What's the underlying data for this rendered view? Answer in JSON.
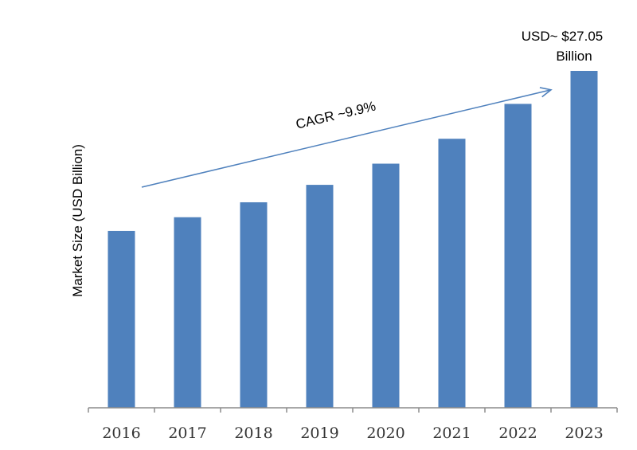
{
  "chart_data": {
    "type": "bar",
    "title": "",
    "xlabel": "",
    "ylabel": "Market Size (USD Billion)",
    "categories": [
      "2016",
      "2017",
      "2018",
      "2019",
      "2020",
      "2021",
      "2022",
      "2023"
    ],
    "values": [
      14.2,
      15.3,
      16.5,
      17.9,
      19.6,
      21.6,
      24.4,
      27.05
    ],
    "ylim": [
      0,
      27.05
    ],
    "bar_color": "#4f81bd",
    "grid": false,
    "legend": "none",
    "annotations": {
      "cagr": "CAGR ~9.9%",
      "callout_line1": "USD~ $27.05",
      "callout_line2": "Billion"
    }
  }
}
